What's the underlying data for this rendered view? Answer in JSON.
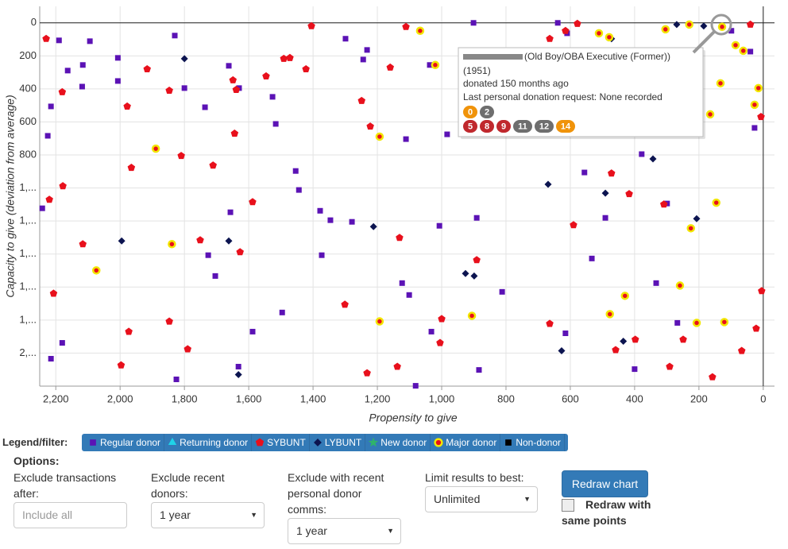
{
  "chart_data": {
    "type": "scatter",
    "x_label": "Propensity to give",
    "y_label": "Capacity to give (deviation from average)",
    "xlim": [
      2250,
      -35
    ],
    "ylim": [
      2200,
      -100
    ],
    "xticks": [
      {
        "value": 2200,
        "label": "2,200"
      },
      {
        "value": 2000,
        "label": "2,000"
      },
      {
        "value": 1800,
        "label": "1,800"
      },
      {
        "value": 1600,
        "label": "1,600"
      },
      {
        "value": 1400,
        "label": "1,400"
      },
      {
        "value": 1200,
        "label": "1,200"
      },
      {
        "value": 1000,
        "label": "1,000"
      },
      800,
      600,
      400,
      200,
      0
    ],
    "yticks": [
      0,
      200,
      400,
      600,
      800,
      {
        "value": 1000,
        "label": "1,..."
      },
      {
        "value": 1200,
        "label": "1,..."
      },
      {
        "value": 1400,
        "label": "1,..."
      },
      {
        "value": 1600,
        "label": "1,..."
      },
      {
        "value": 1800,
        "label": "1,..."
      },
      {
        "value": 2000,
        "label": "2,..."
      }
    ],
    "grid": true,
    "series": [
      {
        "name": "Regular donor",
        "color": "#5b12b5",
        "marker": "square",
        "x": [
          2190,
          2215,
          2225,
          2242,
          2215,
          2180,
          2118,
          2094,
          2163,
          2116,
          2007,
          2007,
          1830,
          1800,
          1736,
          1662,
          1630,
          1526,
          1516,
          1454,
          1444,
          1378,
          1299,
          1244,
          1232,
          1111,
          1037,
          983,
          901,
          639,
          610,
          556,
          378,
          299,
          99,
          40,
          27,
          1657,
          1726,
          1704,
          1588,
          1496,
          1373,
          1346,
          1279,
          1123,
          1101,
          1081,
          1032,
          1007,
          891,
          884,
          812,
          615,
          533,
          491,
          400,
          333,
          267,
          1825,
          1632
        ],
        "values": [
          106,
          506,
          684,
          1123,
          2034,
          1938,
          386,
          111,
          289,
          255,
          212,
          352,
          77,
          395,
          511,
          260,
          395,
          448,
          612,
          897,
          1012,
          1138,
          96,
          222,
          164,
          704,
          255,
          675,
          0,
          0,
          63,
          906,
          795,
          1094,
          48,
          174,
          636,
          1147,
          1407,
          1533,
          1870,
          1754,
          1407,
          1195,
          1205,
          1576,
          1648,
          2198,
          1870,
          1229,
          1181,
          2102,
          1629,
          1880,
          1427,
          1181,
          2097,
          1576,
          1817,
          2159,
          2082
        ]
      },
      {
        "name": "Returning donor",
        "color": "#1fd3e8",
        "marker": "triangle",
        "x": [],
        "values": []
      },
      {
        "name": "SYBUNT",
        "color": "#e8101c",
        "marker": "pentagon",
        "x": [
          2230,
          2220,
          2178,
          2180,
          1978,
          1916,
          1847,
          1810,
          1711,
          1649,
          1639,
          1644,
          1588,
          1546,
          1491,
          1405,
          1472,
          1422,
          1249,
          1222,
          1160,
          1111,
          1131,
          1005,
          1000,
          891,
          664,
          615,
          578,
          472,
          417,
          309,
          664,
          590,
          459,
          398,
          249,
          291,
          158,
          67,
          22,
          5,
          40,
          7,
          1997,
          1973,
          1790,
          1627,
          1301,
          1232,
          1138,
          1751,
          1847,
          1965,
          2116,
          2207
        ],
        "values": [
          96,
          1070,
          988,
          419,
          506,
          280,
          410,
          805,
          863,
          347,
          405,
          670,
          1085,
          323,
          217,
          19,
          212,
          280,
          472,
          627,
          270,
          24,
          1301,
          1938,
          1793,
          1436,
          96,
          48,
          5,
          911,
          1036,
          1099,
          1822,
          1224,
          1981,
          1918,
          1918,
          2082,
          2145,
          1986,
          1851,
          1624,
          10,
          569,
          2073,
          1870,
          1976,
          1388,
          1706,
          2121,
          2082,
          1316,
          1808,
          877,
          1340,
          1639
        ]
      },
      {
        "name": "LYBUNT",
        "color": "#0c1450",
        "marker": "diamond",
        "x": [
          185,
          269,
          472,
          1800,
          1212,
          926,
          669,
          207,
          343,
          435,
          627,
          1632,
          1995,
          1662,
          899,
          491
        ],
        "values": [
          19,
          10,
          96,
          217,
          1234,
          1518,
          978,
          1186,
          824,
          1928,
          1986,
          2130,
          1321,
          1321,
          1533,
          1031
        ]
      },
      {
        "name": "New donor",
        "color": "#2fb36b",
        "marker": "star",
        "x": [],
        "values": []
      },
      {
        "name": "Major donor",
        "color": "#f2e600",
        "fill": "#e8101c",
        "marker": "ring",
        "x": [
          128,
          230,
          304,
          1067,
          1020,
          511,
          479,
          86,
          133,
          62,
          15,
          27,
          165,
          1889,
          1193,
          1839,
          2074,
          1193,
          906,
          259,
          225,
          146,
          207,
          121,
          430,
          477
        ],
        "values": [
          24,
          10,
          39,
          48,
          255,
          63,
          87,
          135,
          366,
          169,
          395,
          496,
          554,
          762,
          689,
          1340,
          1499,
          1808,
          1774,
          1591,
          1244,
          1089,
          1817,
          1812,
          1653,
          1764
        ]
      },
      {
        "name": "Non-donor",
        "color": "#000000",
        "marker": "square",
        "x": [],
        "values": []
      }
    ]
  },
  "tooltip": {
    "name": "(Old Boy/OBA Executive (Former))",
    "year": "(1951)",
    "donated": "donated 150 months ago",
    "request": "Last personal donation request: None recorded",
    "badges": [
      [
        {
          "label": "0",
          "color": "#f0930a"
        },
        {
          "label": "2",
          "color": "#6e6e6e"
        }
      ],
      [
        {
          "label": "5",
          "color": "#c0282d"
        },
        {
          "label": "8",
          "color": "#c0282d"
        },
        {
          "label": "9",
          "color": "#c0282d"
        },
        {
          "label": "11",
          "color": "#6e6e6e"
        },
        {
          "label": "12",
          "color": "#6e6e6e"
        },
        {
          "label": "14",
          "color": "#f0930a"
        }
      ]
    ]
  },
  "legend": {
    "label": "Legend/filter:"
  },
  "options": {
    "title": "Options:",
    "fields": [
      {
        "label": "Exclude transactions after:",
        "placeholder": "Include all"
      },
      {
        "label": "Exclude recent donors:",
        "value": "1 year"
      },
      {
        "label": "Exclude with recent personal donor comms:",
        "value": "1 year"
      },
      {
        "label": "Limit results to best:",
        "value": "Unlimited"
      }
    ],
    "button": "Redraw chart",
    "checkbox": "Redraw with same points"
  }
}
